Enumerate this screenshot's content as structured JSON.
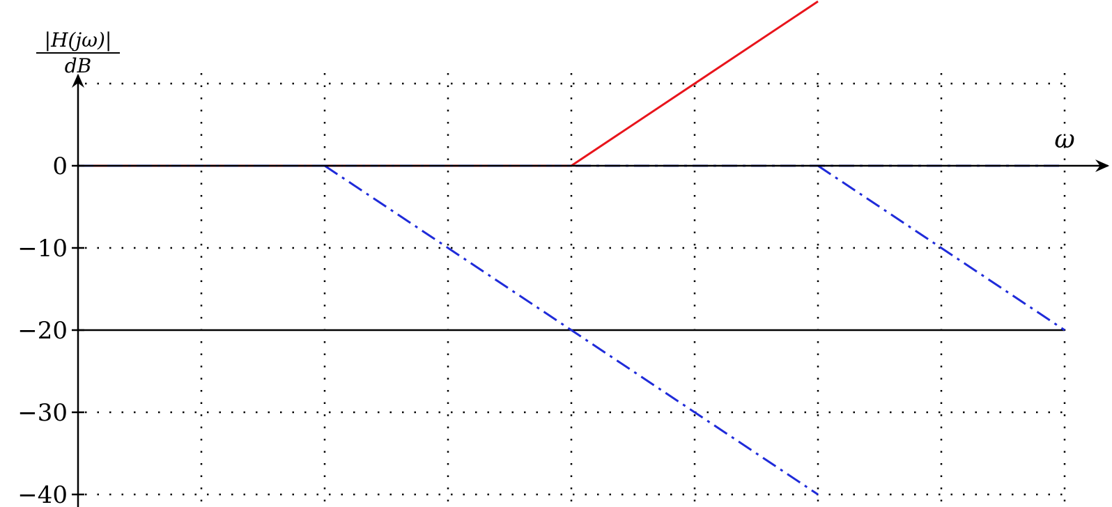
{
  "chart_data": {
    "type": "line",
    "ylabel": "|H(jω)| / dB",
    "ylabel_numerator": "|H(jω)|",
    "ylabel_denominator": "dB",
    "xlabel": "ω",
    "x_grid": [
      0,
      1,
      2,
      3,
      4,
      5,
      6,
      7,
      8
    ],
    "ylim": [
      -40,
      10
    ],
    "yticks": [
      0,
      -10,
      -20,
      -30,
      -40
    ],
    "ytick_labels": [
      "0",
      "−10",
      "−20",
      "−30",
      "−40"
    ],
    "grid": true,
    "reference_line_y": -20,
    "series": [
      {
        "color": "#e8141b",
        "style": "solid",
        "x": [
          0,
          4,
          6
        ],
        "y": [
          0,
          0,
          20
        ]
      },
      {
        "color": "#1f2bd9",
        "style": "dashdot",
        "x": [
          0,
          8
        ],
        "y": [
          0,
          0
        ]
      },
      {
        "color": "#1f2bd9",
        "style": "dashdot",
        "x": [
          2,
          6
        ],
        "y": [
          0,
          -40
        ]
      },
      {
        "color": "#1f2bd9",
        "style": "dashdot",
        "x": [
          6,
          8
        ],
        "y": [
          0,
          -20
        ]
      },
      {
        "color": "#e8141b",
        "style": "dashdot-overlay",
        "x": [
          0,
          4
        ],
        "y": [
          0,
          0
        ]
      }
    ]
  }
}
